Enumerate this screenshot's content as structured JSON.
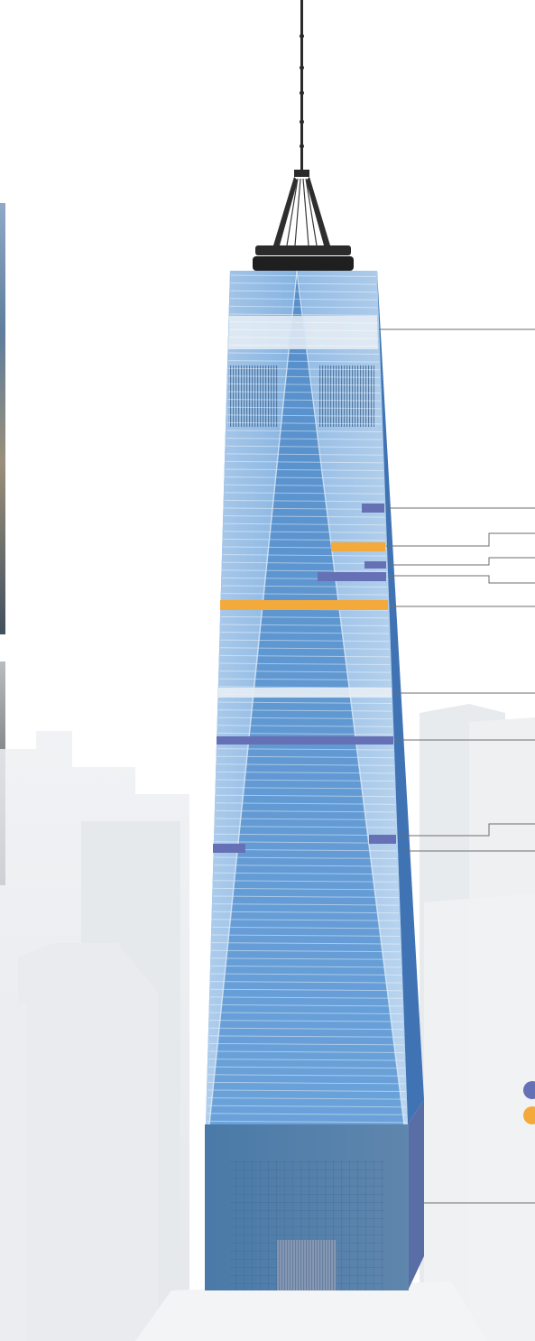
{
  "colors": {
    "background": "#ffffff",
    "skyline": "#e4e7eb",
    "skyline_light": "#eef0f3",
    "tower_light": "#9cc6ec",
    "tower_mid": "#6fa3d8",
    "tower_dark": "#4a7fbd",
    "tower_side": "#3f73b3",
    "podium": "#4e7faa",
    "podium_dark": "#3d6a96",
    "spire": "#2a2a2a",
    "purple_marker": "#6670b5",
    "orange_marker": "#f4a93b",
    "leader_line": "#6d6d6d",
    "upper_band": "#e8eef5"
  },
  "icons": {
    "legend_purple": "purple-dot-icon",
    "legend_orange": "orange-dot-icon"
  },
  "legend": [
    {
      "color": "#6670b5"
    },
    {
      "color": "#f4a93b"
    }
  ]
}
